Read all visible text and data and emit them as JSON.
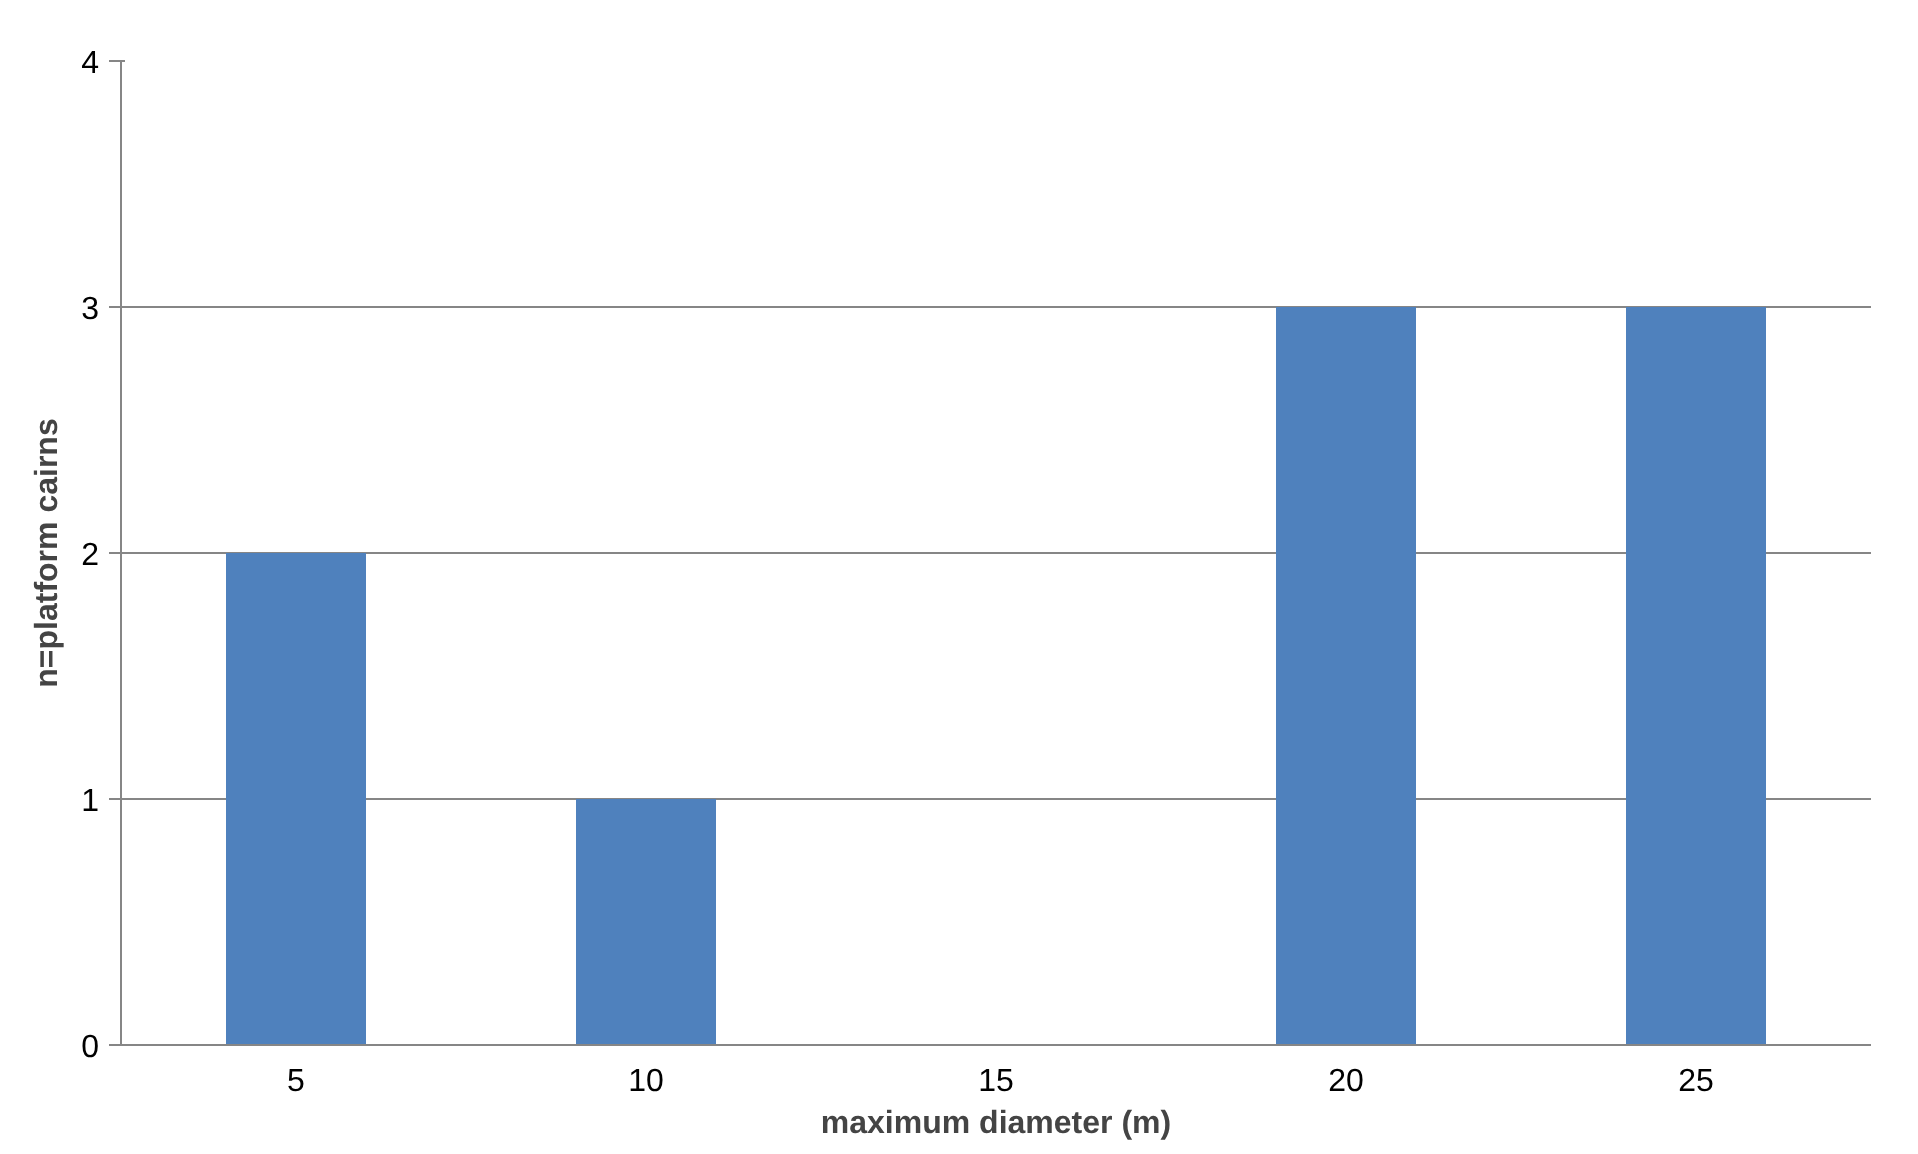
{
  "chart_data": {
    "type": "bar",
    "xlabel": "maximum diameter (m)",
    "ylabel": "n=platform cairns",
    "categories": [
      "5",
      "10",
      "15",
      "20",
      "25"
    ],
    "values": [
      2,
      1,
      0,
      3,
      3
    ],
    "color": "#4f81bd",
    "ylim": [
      0,
      4
    ],
    "yticks": [
      0,
      1,
      2,
      3,
      4
    ],
    "grid": "y"
  }
}
